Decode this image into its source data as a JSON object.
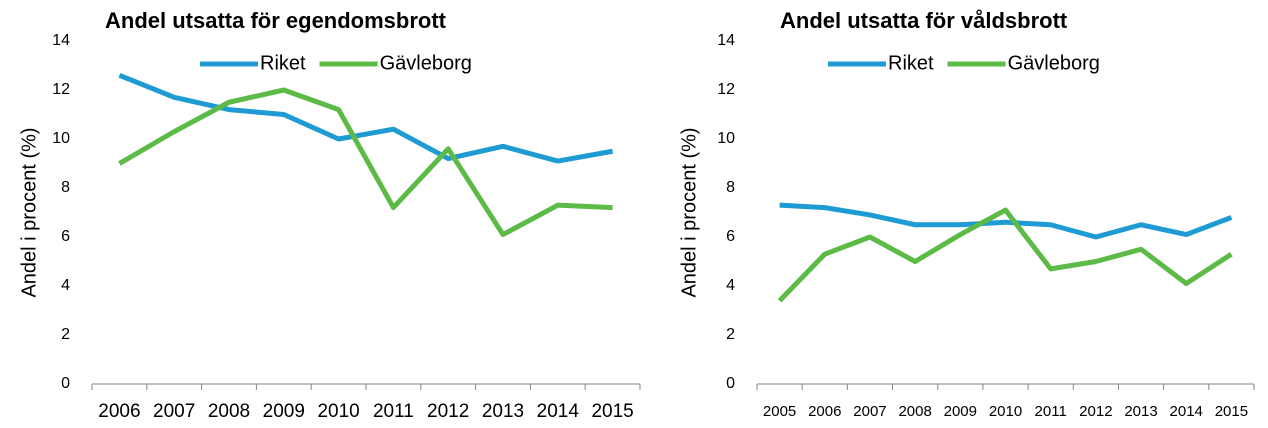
{
  "chart_data": [
    {
      "type": "line",
      "title": "Andel utsatta för egendomsbrott",
      "y_label": "Andel i procent (%)",
      "categories": [
        "2006",
        "2007",
        "2008",
        "2009",
        "2010",
        "2011",
        "2012",
        "2013",
        "2014",
        "2015"
      ],
      "series": [
        {
          "name": "Riket",
          "color": "#1f9bd3",
          "values": [
            12.6,
            11.7,
            11.2,
            11.0,
            10.0,
            10.4,
            9.2,
            9.7,
            9.1,
            9.5
          ]
        },
        {
          "name": "Gävleborg",
          "color": "#5cba47",
          "values": [
            9.0,
            10.3,
            11.5,
            12.0,
            11.2,
            7.2,
            9.6,
            6.1,
            7.3,
            7.2
          ]
        }
      ],
      "ylim": [
        0,
        14
      ],
      "yticks": [
        0,
        2,
        4,
        6,
        8,
        10,
        12,
        14
      ],
      "grid": false
    },
    {
      "type": "line",
      "title": "Andel utsatta för våldsbrott",
      "y_label": "Andel i procent (%)",
      "categories": [
        "2005",
        "2006",
        "2007",
        "2008",
        "2009",
        "2010",
        "2011",
        "2012",
        "2013",
        "2014",
        "2015"
      ],
      "series": [
        {
          "name": "Riket",
          "color": "#1f9bd3",
          "values": [
            7.3,
            7.2,
            6.9,
            6.5,
            6.5,
            6.6,
            6.5,
            6.0,
            6.5,
            6.1,
            6.8
          ]
        },
        {
          "name": "Gävleborg",
          "color": "#5cba47",
          "values": [
            3.4,
            5.3,
            6.0,
            5.0,
            6.1,
            7.1,
            4.7,
            5.0,
            5.5,
            4.1,
            5.3
          ]
        }
      ],
      "ylim": [
        0,
        14
      ],
      "yticks": [
        0,
        2,
        4,
        6,
        8,
        10,
        12,
        14
      ],
      "grid": false
    }
  ]
}
